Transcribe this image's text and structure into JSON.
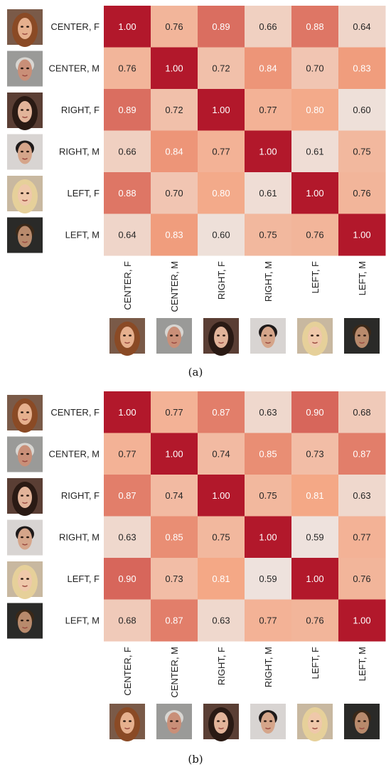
{
  "labels": [
    "CENTER, F",
    "CENTER, M",
    "RIGHT, F",
    "RIGHT, M",
    "LEFT, F",
    "LEFT, M"
  ],
  "face_icons": [
    "face-center-female-icon",
    "face-center-male-icon",
    "face-right-female-icon",
    "face-right-male-icon",
    "face-left-female-icon",
    "face-left-male-icon"
  ],
  "colors": {
    "low": "#f7f7f7",
    "mid": "#f4a582",
    "high": "#b2182b"
  },
  "chart_data": [
    {
      "type": "heatmap",
      "caption": "(a)",
      "rows": [
        "CENTER, F",
        "CENTER, M",
        "RIGHT, F",
        "RIGHT, M",
        "LEFT, F",
        "LEFT, M"
      ],
      "columns": [
        "CENTER, F",
        "CENTER, M",
        "RIGHT, F",
        "RIGHT, M",
        "LEFT, F",
        "LEFT, M"
      ],
      "values": [
        [
          1.0,
          0.76,
          0.89,
          0.66,
          0.88,
          0.64
        ],
        [
          0.76,
          1.0,
          0.72,
          0.84,
          0.7,
          0.83
        ],
        [
          0.89,
          0.72,
          1.0,
          0.77,
          0.8,
          0.6
        ],
        [
          0.66,
          0.84,
          0.77,
          1.0,
          0.61,
          0.75
        ],
        [
          0.88,
          0.7,
          0.8,
          0.61,
          1.0,
          0.76
        ],
        [
          0.64,
          0.83,
          0.6,
          0.75,
          0.76,
          1.0
        ]
      ]
    },
    {
      "type": "heatmap",
      "caption": "(b)",
      "rows": [
        "CENTER, F",
        "CENTER, M",
        "RIGHT, F",
        "RIGHT, M",
        "LEFT, F",
        "LEFT, M"
      ],
      "columns": [
        "CENTER, F",
        "CENTER, M",
        "RIGHT, F",
        "RIGHT, M",
        "LEFT, F",
        "LEFT, M"
      ],
      "values": [
        [
          1.0,
          0.77,
          0.87,
          0.63,
          0.9,
          0.68
        ],
        [
          0.77,
          1.0,
          0.74,
          0.85,
          0.73,
          0.87
        ],
        [
          0.87,
          0.74,
          1.0,
          0.75,
          0.81,
          0.63
        ],
        [
          0.63,
          0.85,
          0.75,
          1.0,
          0.59,
          0.77
        ],
        [
          0.9,
          0.73,
          0.81,
          0.59,
          1.0,
          0.76
        ],
        [
          0.68,
          0.87,
          0.63,
          0.77,
          0.76,
          1.0
        ]
      ]
    }
  ]
}
